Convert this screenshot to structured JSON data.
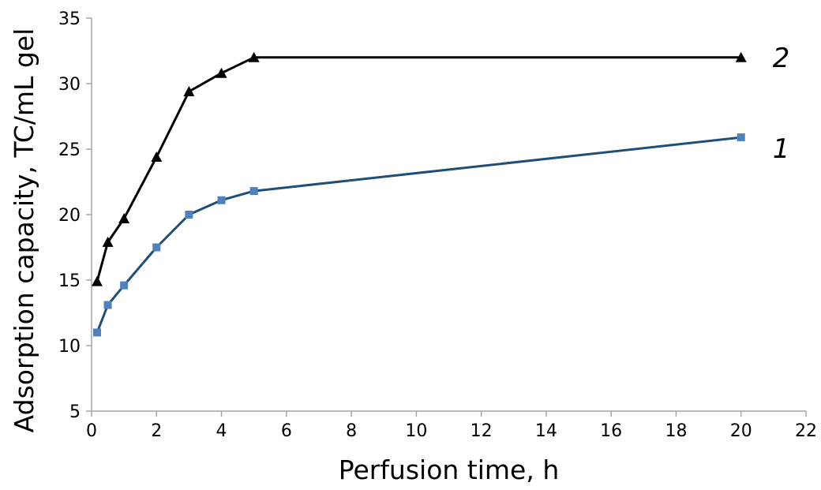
{
  "chart_data": {
    "type": "line",
    "title": "",
    "xlabel": "Perfusion time, h",
    "ylabel": "Adsorption capacity, TC/mL gel",
    "xlim": [
      0,
      22
    ],
    "ylim": [
      5,
      35
    ],
    "xticks": [
      0,
      2,
      4,
      6,
      8,
      10,
      12,
      14,
      16,
      18,
      20,
      22
    ],
    "yticks": [
      5,
      10,
      15,
      20,
      25,
      30,
      35
    ],
    "grid": false,
    "legend": "none",
    "series": [
      {
        "label": "1",
        "marker": "square",
        "color": "#1f4e79",
        "marker_color": "#4f81bd",
        "x": [
          0.17,
          0.5,
          1,
          2,
          3,
          4,
          5,
          20
        ],
        "y": [
          11.0,
          13.1,
          14.6,
          17.5,
          20.0,
          21.1,
          21.8,
          25.9
        ]
      },
      {
        "label": "2",
        "marker": "triangle",
        "color": "#000000",
        "marker_color": "#000000",
        "x": [
          0.17,
          0.5,
          1,
          2,
          3,
          4,
          5,
          20
        ],
        "y": [
          14.9,
          17.9,
          19.7,
          24.4,
          29.4,
          30.8,
          32.0,
          32.0
        ]
      }
    ]
  }
}
